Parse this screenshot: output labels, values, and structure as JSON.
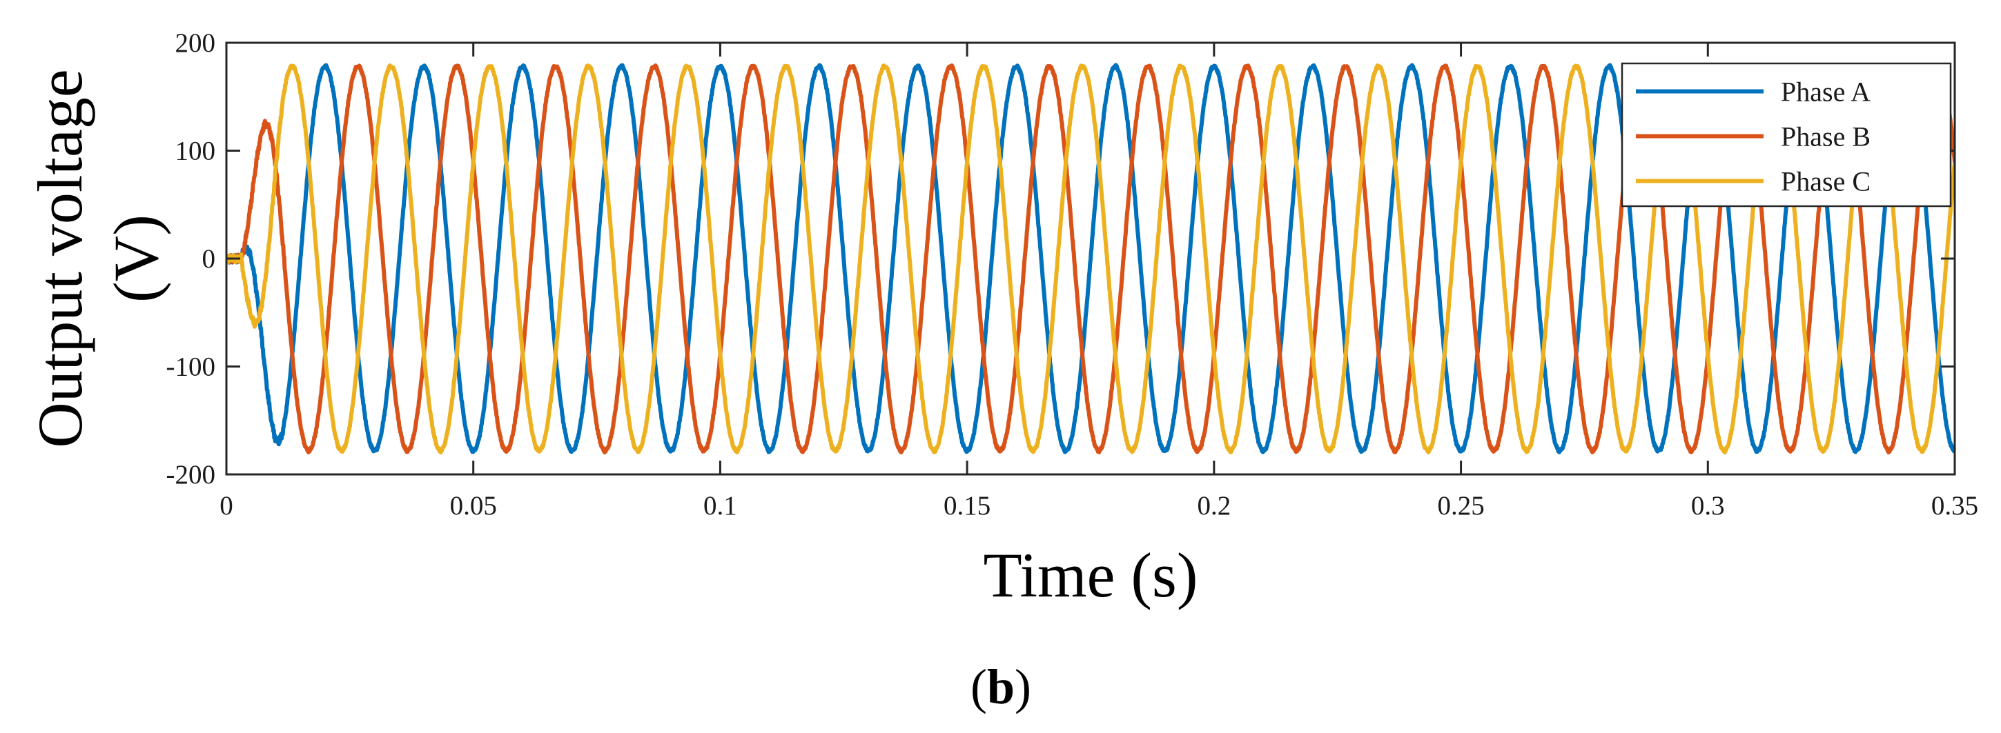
{
  "chart_data": {
    "type": "line",
    "xlabel": "Time (s)",
    "ylabel_lines": [
      "Output voltage",
      "(V)"
    ],
    "caption_open": "(",
    "caption_letter": "b",
    "caption_close": ")",
    "xlim": [
      0,
      0.35
    ],
    "ylim": [
      -200,
      200
    ],
    "xticks": [
      0,
      0.05,
      0.1,
      0.15,
      0.2,
      0.25,
      0.3,
      0.35
    ],
    "xtick_labels": [
      "0",
      "0.05",
      "0.1",
      "0.15",
      "0.2",
      "0.25",
      "0.3",
      "0.35"
    ],
    "yticks": [
      200,
      100,
      0,
      -100,
      -200
    ],
    "ytick_labels": [
      "200",
      "100",
      "0",
      "-100",
      "-200"
    ],
    "grid": false,
    "legend_position": "top-right",
    "signal": {
      "amplitude": 178,
      "frequency_hz": 50,
      "startup_end_s": 0.012
    },
    "series": [
      {
        "name": "Phase A",
        "color": "#0072BD",
        "phase_deg": 90
      },
      {
        "name": "Phase B",
        "color": "#D95319",
        "phase_deg": -30
      },
      {
        "name": "Phase C",
        "color": "#EDB120",
        "phase_deg": 210
      }
    ]
  }
}
